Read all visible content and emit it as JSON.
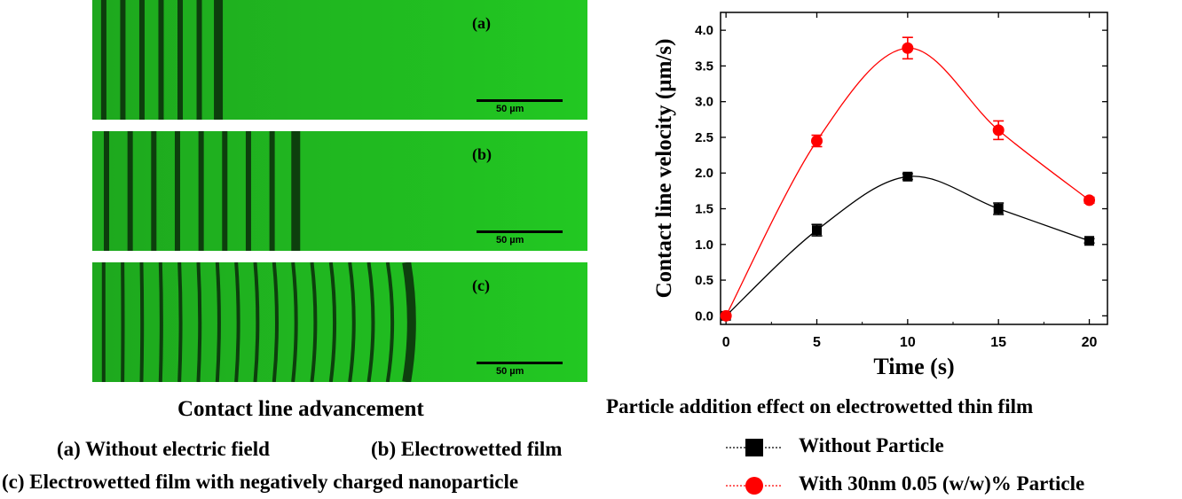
{
  "panels": [
    {
      "label": "(a)",
      "scale": "50 µm",
      "fringe_count": 7,
      "fringe_end_fraction": 0.27
    },
    {
      "label": "(b)",
      "scale": "50 µm",
      "fringe_count": 9,
      "fringe_end_fraction": 0.43
    },
    {
      "label": "(c)",
      "scale": "50 µm",
      "fringe_count": 17,
      "fringe_end_fraction": 0.65
    }
  ],
  "captions": {
    "left_title": "Contact line advancement",
    "line_a": "(a)  Without electric field",
    "line_b": "(b)  Electrowetted film",
    "line_c": "(c)  Electrowetted film with negatively charged nanoparticle",
    "right_title": "Particle addition effect on electrowetted thin film"
  },
  "chart_data": {
    "type": "line",
    "xlabel": "Time (s)",
    "ylabel": "Contact line velocity (µm/s)",
    "xlim": [
      -0.3,
      21
    ],
    "ylim": [
      -0.12,
      4.25
    ],
    "xticks": [
      0,
      5,
      10,
      15,
      20
    ],
    "yticks": [
      "0.0",
      "0.5",
      "1.0",
      "1.5",
      "2.0",
      "2.5",
      "3.0",
      "3.5",
      "4.0"
    ],
    "x": [
      0,
      5,
      10,
      15,
      20
    ],
    "series": [
      {
        "name": "Without Particle",
        "values": [
          0,
          1.2,
          1.95,
          1.5,
          1.05
        ],
        "errors": [
          0,
          0.08,
          0.04,
          0.08,
          0.03
        ],
        "color": "#000000",
        "marker": "square"
      },
      {
        "name": "With 30nm 0.05 (w/w)% Particle",
        "values": [
          0,
          2.45,
          3.75,
          2.6,
          1.62
        ],
        "errors": [
          0,
          0.08,
          0.15,
          0.13,
          0.04
        ],
        "color": "#ff0000",
        "marker": "circle"
      }
    ],
    "legend": "below-chart",
    "grid": false
  }
}
